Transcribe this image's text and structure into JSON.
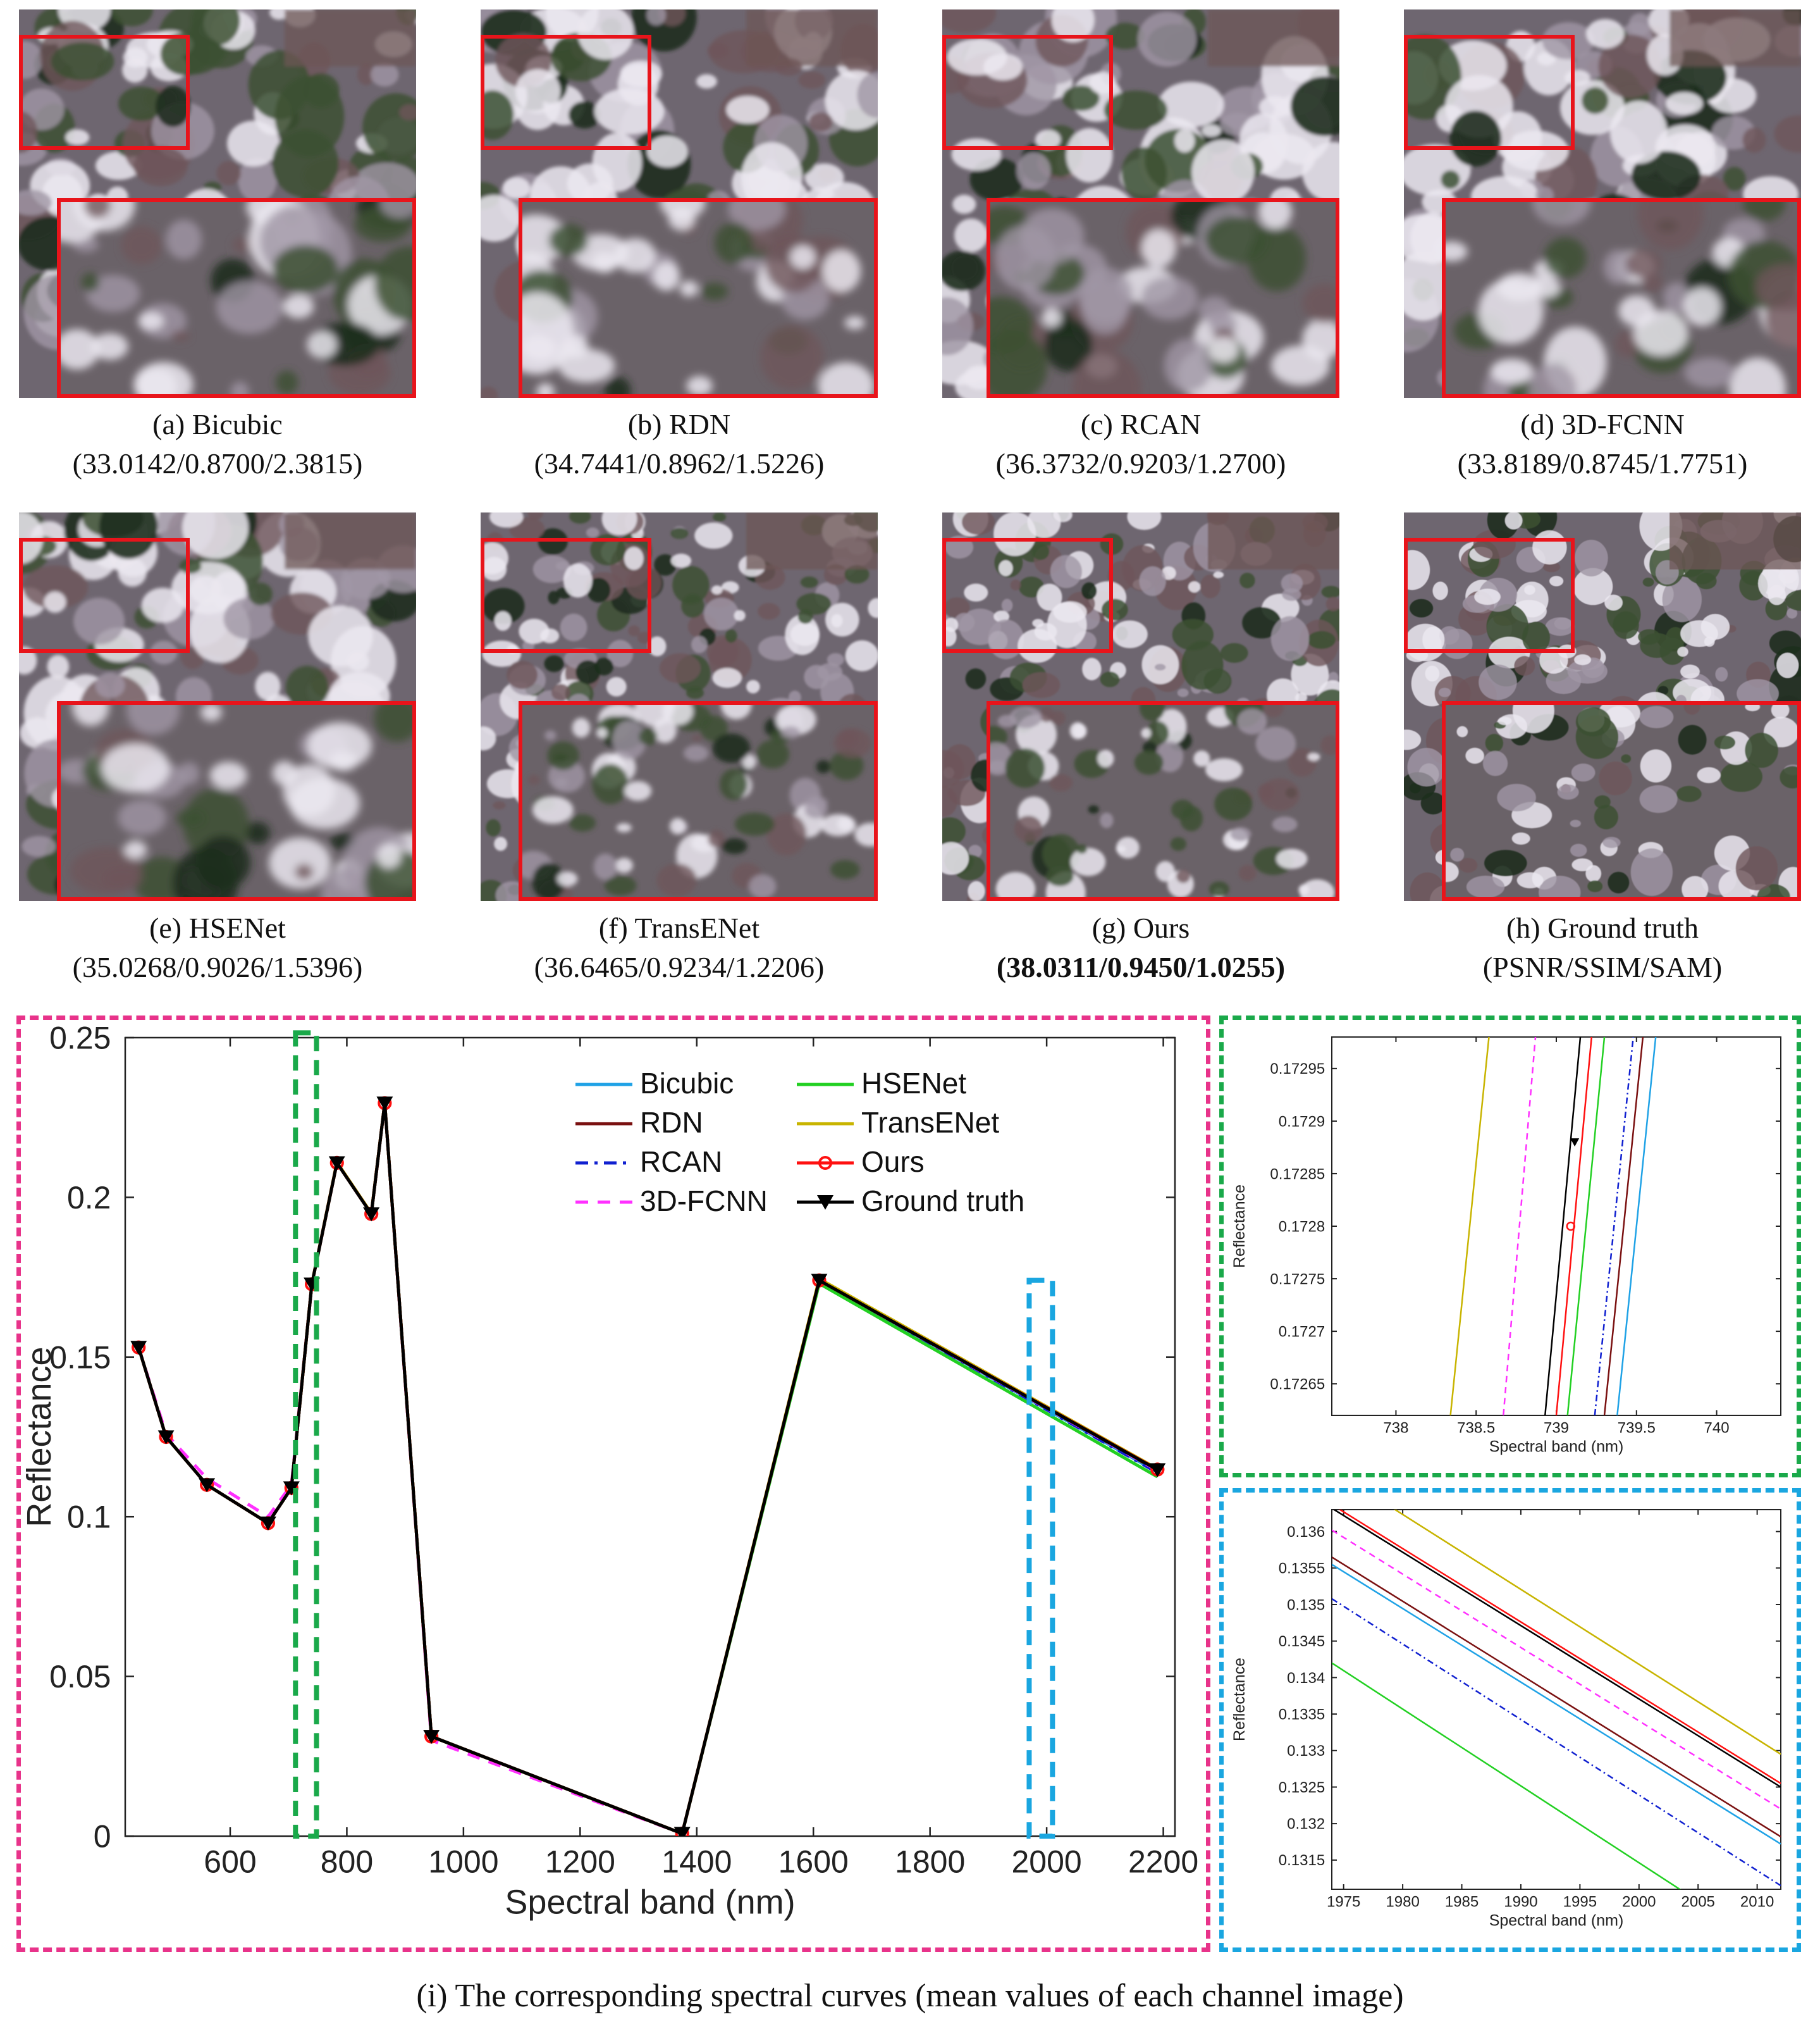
{
  "panels": [
    {
      "id": "a",
      "label": "(a) Bicubic",
      "metrics": "(33.0142/0.8700/2.3815)",
      "bold": false
    },
    {
      "id": "b",
      "label": "(b) RDN",
      "metrics": "(34.7441/0.8962/1.5226)",
      "bold": false
    },
    {
      "id": "c",
      "label": "(c) RCAN",
      "metrics": "(36.3732/0.9203/1.2700)",
      "bold": false
    },
    {
      "id": "d",
      "label": "(d) 3D-FCNN",
      "metrics": "(33.8189/0.8745/1.7751)",
      "bold": false
    },
    {
      "id": "e",
      "label": "(e) HSENet",
      "metrics": "(35.0268/0.9026/1.5396)",
      "bold": false
    },
    {
      "id": "f",
      "label": "(f) TransENet",
      "metrics": "(36.6465/0.9234/1.2206)",
      "bold": false
    },
    {
      "id": "g",
      "label": "(g) Ours",
      "metrics": "(38.0311/0.9450/1.0255)",
      "bold": true
    },
    {
      "id": "h",
      "label": "(h) Ground truth",
      "metrics": "(PSNR/SSIM/SAM)",
      "bold": false
    }
  ],
  "caption_bottom": "(i) The corresponding spectral curves (mean values of each channel image)",
  "colors": {
    "pink_frame": "#e8338a",
    "green_frame": "#1aa94a",
    "blue_frame": "#1aa6e0",
    "zoom_box": "#e8141b"
  },
  "chart_data": [
    {
      "type": "line",
      "xlabel": "Spectral band (nm)",
      "ylabel": "Reflectance",
      "xlim": [
        420,
        2220
      ],
      "ylim": [
        0,
        0.25
      ],
      "xticks": [
        "600",
        "800",
        "1000",
        "1200",
        "1400",
        "1600",
        "1800",
        "2000",
        "2200"
      ],
      "yticks": [
        "0",
        "0.05",
        "0.1",
        "0.15",
        "0.2",
        "0.25"
      ],
      "legend_position": "top-right",
      "x": [
        443,
        490,
        560,
        665,
        705,
        740,
        783,
        842,
        865,
        945,
        1375,
        1610,
        2190
      ],
      "series": [
        {
          "name": "Bicubic",
          "color": "#1fa2e6",
          "dash": "solid",
          "values": [
            0.153,
            0.125,
            0.11,
            0.098,
            0.109,
            0.1728,
            0.2108,
            0.1948,
            0.2295,
            0.0312,
            0.0008,
            0.174,
            0.114
          ]
        },
        {
          "name": "RDN",
          "color": "#7a1010",
          "dash": "solid",
          "values": [
            0.153,
            0.125,
            0.11,
            0.098,
            0.109,
            0.1728,
            0.2108,
            0.1948,
            0.2295,
            0.0312,
            0.0008,
            0.174,
            0.1145
          ]
        },
        {
          "name": "RCAN",
          "color": "#1020d0",
          "dash": "dashdot",
          "values": [
            0.153,
            0.125,
            0.11,
            0.098,
            0.109,
            0.1728,
            0.2108,
            0.1948,
            0.2295,
            0.0312,
            0.0008,
            0.174,
            0.1138
          ]
        },
        {
          "name": "3D-FCNN",
          "color": "#ff30ff",
          "dash": "dashed",
          "values": [
            0.153,
            0.126,
            0.112,
            0.1,
            0.11,
            0.1728,
            0.2108,
            0.1948,
            0.2295,
            0.03,
            0.0008,
            0.174,
            0.1145
          ]
        },
        {
          "name": "HSENet",
          "color": "#22d022",
          "dash": "solid",
          "values": [
            0.153,
            0.125,
            0.11,
            0.098,
            0.109,
            0.1728,
            0.2108,
            0.1948,
            0.2295,
            0.0312,
            0.0008,
            0.173,
            0.1125
          ]
        },
        {
          "name": "TransENet",
          "color": "#c8b400",
          "dash": "solid",
          "values": [
            0.153,
            0.125,
            0.11,
            0.098,
            0.109,
            0.1729,
            0.211,
            0.195,
            0.2296,
            0.0312,
            0.0008,
            0.1745,
            0.115
          ]
        },
        {
          "name": "Ours",
          "color": "#ff1010",
          "dash": "solid",
          "marker": "circle",
          "values": [
            0.153,
            0.125,
            0.11,
            0.098,
            0.109,
            0.1728,
            0.2108,
            0.1948,
            0.2295,
            0.0312,
            0.0008,
            0.174,
            0.1148
          ]
        },
        {
          "name": "Ground truth",
          "color": "#000000",
          "dash": "solid",
          "marker": "triangle-down",
          "values": [
            0.153,
            0.125,
            0.11,
            0.098,
            0.109,
            0.1728,
            0.2108,
            0.1948,
            0.2295,
            0.0312,
            0.0008,
            0.174,
            0.1147
          ]
        }
      ]
    },
    {
      "type": "line",
      "xlabel": "Spectral band (nm)",
      "ylabel": "Reflectance",
      "xlim": [
        737.6,
        740.4
      ],
      "ylim": [
        0.17262,
        0.17298
      ],
      "xticks": [
        "738",
        "738.5",
        "739",
        "739.5",
        "740"
      ],
      "yticks": [
        "0.17265",
        "0.1727",
        "0.17275",
        "0.1728",
        "0.17285",
        "0.1729",
        "0.17295"
      ],
      "series": [
        {
          "name": "TransENet",
          "color": "#c8b400",
          "dash": "solid",
          "x": [
            738.34,
            738.58
          ],
          "values": [
            0.17262,
            0.17298
          ]
        },
        {
          "name": "3D-FCNN",
          "color": "#ff30ff",
          "dash": "dashed",
          "x": [
            738.67,
            738.87
          ],
          "values": [
            0.17262,
            0.17298
          ]
        },
        {
          "name": "Ground truth",
          "color": "#000000",
          "dash": "solid",
          "x": [
            738.93,
            739.15
          ],
          "values": [
            0.17262,
            0.17298
          ]
        },
        {
          "name": "Ours",
          "color": "#ff1010",
          "dash": "solid",
          "x": [
            739.0,
            739.22
          ],
          "values": [
            0.17262,
            0.17298
          ]
        },
        {
          "name": "HSENet",
          "color": "#22d022",
          "dash": "solid",
          "x": [
            739.07,
            739.3
          ],
          "values": [
            0.17262,
            0.17298
          ]
        },
        {
          "name": "RCAN",
          "color": "#1020d0",
          "dash": "dashdot",
          "x": [
            739.24,
            739.48
          ],
          "values": [
            0.17262,
            0.17298
          ]
        },
        {
          "name": "RDN",
          "color": "#7a1010",
          "dash": "solid",
          "x": [
            739.3,
            739.54
          ],
          "values": [
            0.17262,
            0.17298
          ]
        },
        {
          "name": "Bicubic",
          "color": "#1fa2e6",
          "dash": "solid",
          "x": [
            739.38,
            739.62
          ],
          "values": [
            0.17262,
            0.17298
          ]
        }
      ]
    },
    {
      "type": "line",
      "xlabel": "Spectral band (nm)",
      "ylabel": "Reflectance",
      "xlim": [
        1974,
        2012
      ],
      "ylim": [
        0.1311,
        0.1363
      ],
      "xticks": [
        "1975",
        "1980",
        "1985",
        "1990",
        "1995",
        "2000",
        "2005",
        "2010"
      ],
      "yticks": [
        "0.1315",
        "0.132",
        "0.1325",
        "0.133",
        "0.1335",
        "0.134",
        "0.1345",
        "0.135",
        "0.1355",
        "0.136"
      ],
      "series": [
        {
          "name": "TransENet",
          "color": "#c8b400",
          "dash": "solid",
          "x": [
            1974,
            2012
          ],
          "values": [
            0.13685,
            0.13295
          ]
        },
        {
          "name": "Ground truth",
          "color": "#000000",
          "dash": "solid",
          "x": [
            1974,
            2012
          ],
          "values": [
            0.13632,
            0.1325
          ]
        },
        {
          "name": "Ours",
          "color": "#ff1010",
          "dash": "solid",
          "x": [
            1974,
            2012
          ],
          "values": [
            0.13637,
            0.13255
          ]
        },
        {
          "name": "3D-FCNN",
          "color": "#ff30ff",
          "dash": "dashed",
          "x": [
            1974,
            2012
          ],
          "values": [
            0.13602,
            0.1322
          ]
        },
        {
          "name": "RDN",
          "color": "#7a1010",
          "dash": "solid",
          "x": [
            1974,
            2012
          ],
          "values": [
            0.13565,
            0.13182
          ]
        },
        {
          "name": "Bicubic",
          "color": "#1fa2e6",
          "dash": "solid",
          "x": [
            1974,
            2012
          ],
          "values": [
            0.13555,
            0.13172
          ]
        },
        {
          "name": "RCAN",
          "color": "#1020d0",
          "dash": "dashdot",
          "x": [
            1974,
            2012
          ],
          "values": [
            0.13508,
            0.13115
          ]
        },
        {
          "name": "HSENet",
          "color": "#22d022",
          "dash": "solid",
          "x": [
            1974,
            2012
          ],
          "values": [
            0.1342,
            0.1302
          ]
        }
      ]
    }
  ]
}
